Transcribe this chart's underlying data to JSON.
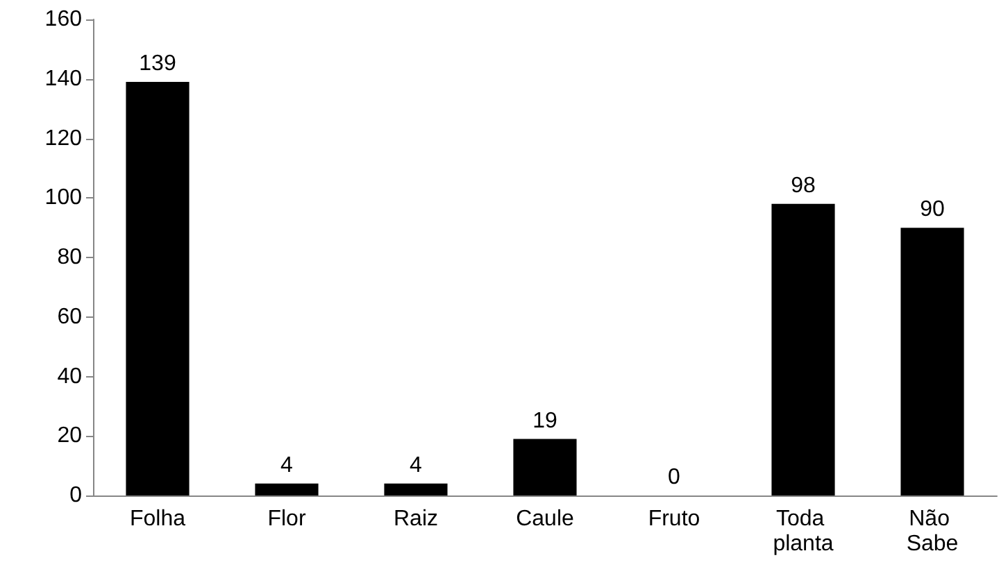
{
  "chart_data": {
    "type": "bar",
    "categories": [
      "Folha",
      "Flor",
      "Raiz",
      "Caule",
      "Fruto",
      "Toda planta",
      "Não Sabe"
    ],
    "values": [
      139,
      4,
      4,
      19,
      0,
      98,
      90
    ],
    "color": "#000000",
    "data_labels": true,
    "ylim": [
      0,
      160
    ],
    "yticks": [
      0,
      20,
      40,
      60,
      80,
      100,
      120,
      140,
      160
    ],
    "grid": false
  }
}
